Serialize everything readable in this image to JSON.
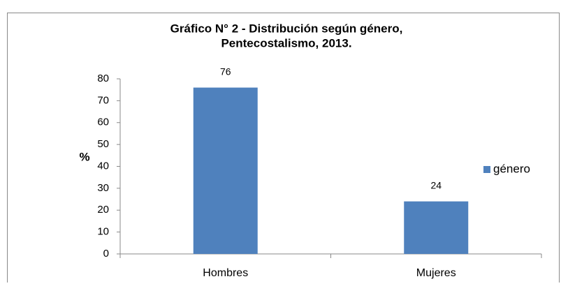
{
  "chart_data": {
    "type": "bar",
    "title": [
      "Gráfico N° 2 - Distribución según género,",
      "Pentecostalismo, 2013."
    ],
    "y_label": "%",
    "categories": [
      "Hombres",
      "Mujeres"
    ],
    "series": [
      {
        "name": "género",
        "color": "#4f81bd",
        "values": [
          76,
          24
        ]
      }
    ],
    "ylim": [
      0,
      80
    ],
    "yticks": [
      0,
      10,
      20,
      30,
      40,
      50,
      60,
      70,
      80
    ],
    "grid": false,
    "legend": "right"
  }
}
